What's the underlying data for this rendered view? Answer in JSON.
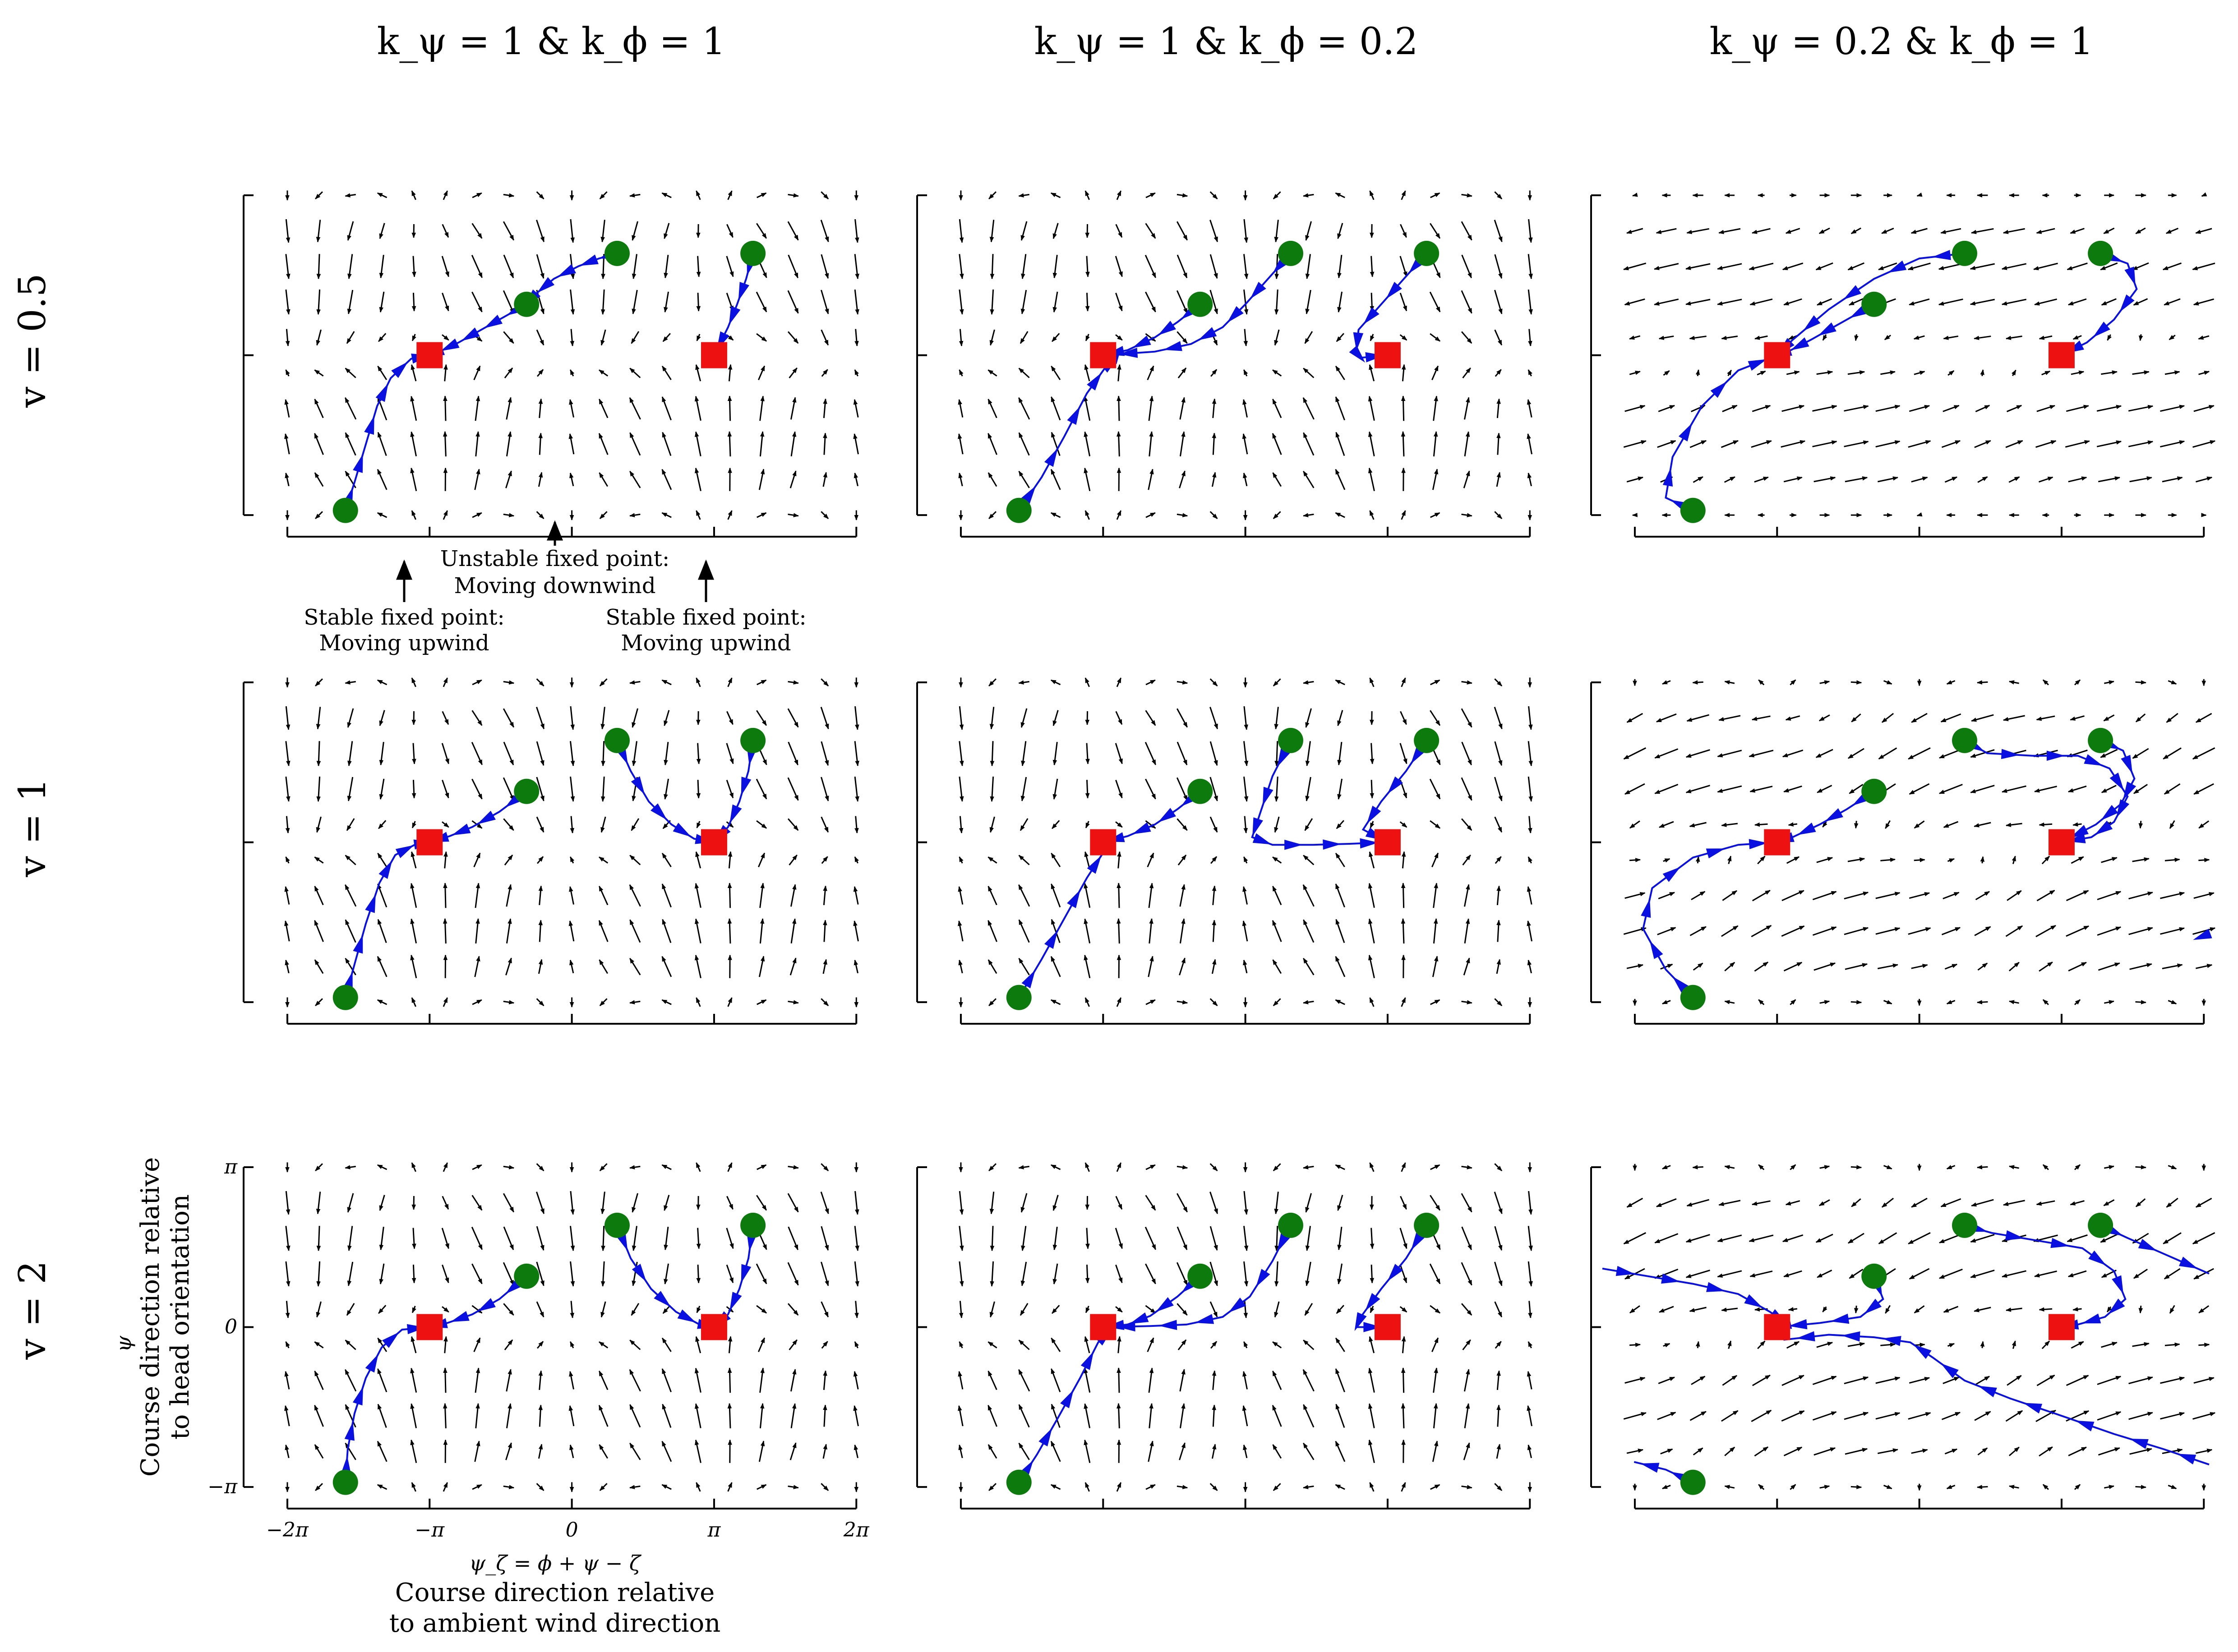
{
  "colors": {
    "trajectory": "#0a10e0",
    "start_marker": "#0c7a0c",
    "fixed_point_marker": "#ee1111",
    "quiver": "#000000"
  },
  "chart_data": {
    "type": "quiver-grid",
    "column_titles": [
      "k_ψ = 1   &   k_ϕ = 1",
      "k_ψ = 1   &   k_ϕ = 0.2",
      "k_ψ = 0.2   &   k_ϕ = 1"
    ],
    "row_titles": [
      "v = 0.5",
      "v = 1",
      "v = 2"
    ],
    "xlim": [
      -7.0,
      6.4
    ],
    "ylim": [
      -3.3,
      3.7
    ],
    "x_ticks": [
      -6.283,
      -3.1416,
      0,
      3.1416,
      6.283
    ],
    "x_tick_labels": [
      "−2π",
      "−π",
      "0",
      "π",
      "2π"
    ],
    "y_ticks": [
      -3.1416,
      0,
      3.1416
    ],
    "y_tick_labels": [
      "−π",
      "0",
      "π"
    ],
    "x_axis_label": {
      "symbol": "ψ_ζ = ϕ + ψ − ζ",
      "line1": "Course direction relative",
      "line2": "to ambient wind direction"
    },
    "y_axis_label": {
      "symbol": "ψ",
      "line1": "Course direction relative",
      "line2": "to head orientation"
    },
    "annotations": [
      {
        "text_lines": [
          "Unstable fixed point:",
          "Moving downwind"
        ],
        "x": 0.0
      },
      {
        "text_lines": [
          "Stable fixed point:",
          "Moving upwind"
        ],
        "x": -3.1416
      },
      {
        "text_lines": [
          "Stable fixed point:",
          "Moving upwind"
        ],
        "x": 3.1416
      }
    ],
    "fixed_points": [
      [
        -3.1416,
        0
      ],
      [
        3.1416,
        0
      ]
    ],
    "start_points": [
      [
        -5.0,
        -3.05
      ],
      [
        -1.0,
        1.0
      ],
      [
        1.0,
        2.0
      ],
      [
        4.0,
        2.0
      ]
    ],
    "panels": [
      {
        "row": 0,
        "col": 0,
        "field": "A",
        "trajectories": [
          [
            [
              -5.0,
              -3.05
            ],
            [
              -4.8,
              -2.5
            ],
            [
              -4.55,
              -1.75
            ],
            [
              -4.3,
              -1.0
            ],
            [
              -4.0,
              -0.45
            ],
            [
              -3.55,
              -0.07
            ],
            [
              -3.1416,
              0
            ]
          ],
          [
            [
              -1.0,
              1.0
            ],
            [
              -1.5,
              0.75
            ],
            [
              -2.0,
              0.5
            ],
            [
              -2.5,
              0.25
            ],
            [
              -2.9,
              0.08
            ],
            [
              -3.1416,
              0
            ]
          ],
          [
            [
              1.0,
              2.0
            ],
            [
              0.6,
              1.9
            ],
            [
              0.15,
              1.75
            ],
            [
              -0.4,
              1.5
            ],
            [
              -0.8,
              1.2
            ],
            [
              -1.0,
              1.0
            ]
          ],
          [
            [
              4.0,
              2.0
            ],
            [
              3.85,
              1.5
            ],
            [
              3.65,
              1.0
            ],
            [
              3.45,
              0.55
            ],
            [
              3.1416,
              0
            ]
          ]
        ]
      },
      {
        "row": 0,
        "col": 1,
        "field": "A",
        "trajectories": [
          [
            [
              -5.0,
              -3.05
            ],
            [
              -4.5,
              -2.4
            ],
            [
              -4.0,
              -1.6
            ],
            [
              -3.5,
              -0.75
            ],
            [
              -3.1,
              -0.25
            ],
            [
              -2.85,
              -0.07
            ],
            [
              -3.1416,
              0
            ]
          ],
          [
            [
              -1.0,
              1.0
            ],
            [
              -1.5,
              0.65
            ],
            [
              -2.0,
              0.35
            ],
            [
              -2.6,
              0.1
            ],
            [
              -3.1416,
              0
            ]
          ],
          [
            [
              1.0,
              2.0
            ],
            [
              0.5,
              1.5
            ],
            [
              0.0,
              1.0
            ],
            [
              -0.5,
              0.55
            ],
            [
              -1.2,
              0.22
            ],
            [
              -2.0,
              0.07
            ],
            [
              -3.1416,
              0
            ]
          ],
          [
            [
              4.0,
              2.0
            ],
            [
              3.5,
              1.5
            ],
            [
              3.0,
              1.0
            ],
            [
              2.5,
              0.5
            ],
            [
              2.45,
              0.05
            ],
            [
              2.55,
              -0.05
            ],
            [
              3.1416,
              0
            ]
          ]
        ]
      },
      {
        "row": 0,
        "col": 2,
        "field": "B",
        "trajectories": [
          [
            [
              -5.0,
              -3.05
            ],
            [
              -5.6,
              -2.8
            ],
            [
              -5.45,
              -2.0
            ],
            [
              -4.8,
              -1.0
            ],
            [
              -4.0,
              -0.3
            ],
            [
              -3.1416,
              0
            ]
          ],
          [
            [
              -1.0,
              1.0
            ],
            [
              -1.7,
              0.65
            ],
            [
              -2.4,
              0.3
            ],
            [
              -2.9,
              0.07
            ],
            [
              -3.1416,
              0
            ]
          ],
          [
            [
              1.0,
              2.0
            ],
            [
              0.0,
              1.9
            ],
            [
              -1.0,
              1.5
            ],
            [
              -2.0,
              0.9
            ],
            [
              -2.8,
              0.3
            ],
            [
              -3.1416,
              0
            ]
          ],
          [
            [
              4.0,
              2.0
            ],
            [
              4.6,
              1.8
            ],
            [
              4.8,
              1.3
            ],
            [
              4.3,
              0.7
            ],
            [
              3.7,
              0.25
            ],
            [
              3.1416,
              0
            ]
          ]
        ]
      },
      {
        "row": 1,
        "col": 0,
        "field": "A",
        "trajectories": [
          [
            [
              -5.0,
              -3.05
            ],
            [
              -4.8,
              -2.4
            ],
            [
              -4.55,
              -1.6
            ],
            [
              -4.25,
              -0.8
            ],
            [
              -3.9,
              -0.25
            ],
            [
              -3.45,
              -0.04
            ],
            [
              -3.1416,
              0
            ]
          ],
          [
            [
              -1.0,
              1.0
            ],
            [
              -1.6,
              0.6
            ],
            [
              -2.2,
              0.3
            ],
            [
              -2.7,
              0.12
            ],
            [
              -3.1416,
              0
            ]
          ],
          [
            [
              1.0,
              2.0
            ],
            [
              1.3,
              1.4
            ],
            [
              1.7,
              0.8
            ],
            [
              2.2,
              0.35
            ],
            [
              2.7,
              0.07
            ],
            [
              3.1416,
              0
            ]
          ],
          [
            [
              4.0,
              2.0
            ],
            [
              3.9,
              1.4
            ],
            [
              3.7,
              0.8
            ],
            [
              3.45,
              0.3
            ],
            [
              3.1416,
              0
            ]
          ]
        ]
      },
      {
        "row": 1,
        "col": 1,
        "field": "A",
        "trajectories": [
          [
            [
              -5.0,
              -3.05
            ],
            [
              -4.5,
              -2.3
            ],
            [
              -4.0,
              -1.5
            ],
            [
              -3.5,
              -0.7
            ],
            [
              -3.1,
              -0.15
            ],
            [
              -3.1416,
              0
            ]
          ],
          [
            [
              -1.0,
              1.0
            ],
            [
              -1.5,
              0.65
            ],
            [
              -2.0,
              0.35
            ],
            [
              -2.6,
              0.12
            ],
            [
              -3.1416,
              0
            ]
          ],
          [
            [
              1.0,
              2.0
            ],
            [
              0.6,
              1.3
            ],
            [
              0.3,
              0.5
            ],
            [
              0.15,
              0.1
            ],
            [
              0.6,
              -0.05
            ],
            [
              1.5,
              -0.05
            ],
            [
              2.3,
              -0.03
            ],
            [
              3.1416,
              0
            ]
          ],
          [
            [
              4.0,
              2.0
            ],
            [
              3.55,
              1.4
            ],
            [
              3.0,
              0.8
            ],
            [
              2.6,
              0.25
            ],
            [
              3.1416,
              0
            ]
          ]
        ]
      },
      {
        "row": 1,
        "col": 2,
        "field": "C",
        "trajectories": [
          [
            [
              -5.0,
              -3.05
            ],
            [
              -5.6,
              -2.5
            ],
            [
              -6.1,
              -1.7
            ],
            [
              -5.9,
              -0.9
            ],
            [
              -5.0,
              -0.3
            ],
            [
              -4.0,
              -0.05
            ],
            [
              -3.1416,
              0
            ]
          ],
          [
            [
              -1.0,
              1.0
            ],
            [
              -1.6,
              0.65
            ],
            [
              -2.2,
              0.35
            ],
            [
              -2.8,
              0.1
            ],
            [
              -3.1416,
              0
            ]
          ],
          [
            [
              1.0,
              2.0
            ],
            [
              1.5,
              1.75
            ],
            [
              2.5,
              1.7
            ],
            [
              3.5,
              1.7
            ],
            [
              4.2,
              1.45
            ],
            [
              4.6,
              0.9
            ],
            [
              4.3,
              0.4
            ],
            [
              3.8,
              0.1
            ],
            [
              3.1416,
              0
            ]
          ],
          [
            [
              4.0,
              2.0
            ],
            [
              4.5,
              1.8
            ],
            [
              4.75,
              1.25
            ],
            [
              4.45,
              0.75
            ],
            [
              3.9,
              0.35
            ],
            [
              3.1416,
              0
            ]
          ],
          [
            [
              6.4,
              -1.8
            ],
            [
              6.1,
              -1.9
            ]
          ]
        ]
      },
      {
        "row": 2,
        "col": 0,
        "field": "A",
        "trajectories": [
          [
            [
              -5.0,
              -3.05
            ],
            [
              -4.95,
              -2.4
            ],
            [
              -4.8,
              -1.7
            ],
            [
              -4.55,
              -1.0
            ],
            [
              -4.2,
              -0.4
            ],
            [
              -3.75,
              -0.05
            ],
            [
              -3.1416,
              0
            ]
          ],
          [
            [
              -1.0,
              1.0
            ],
            [
              -1.6,
              0.55
            ],
            [
              -2.2,
              0.25
            ],
            [
              -2.75,
              0.08
            ],
            [
              -3.1416,
              0
            ]
          ],
          [
            [
              1.0,
              2.0
            ],
            [
              1.3,
              1.35
            ],
            [
              1.75,
              0.75
            ],
            [
              2.3,
              0.3
            ],
            [
              2.8,
              0.06
            ],
            [
              3.1416,
              0
            ]
          ],
          [
            [
              4.0,
              2.0
            ],
            [
              3.9,
              1.35
            ],
            [
              3.7,
              0.75
            ],
            [
              3.45,
              0.25
            ],
            [
              3.1416,
              0
            ]
          ]
        ]
      },
      {
        "row": 2,
        "col": 1,
        "field": "A",
        "trajectories": [
          [
            [
              -5.0,
              -3.05
            ],
            [
              -4.6,
              -2.5
            ],
            [
              -4.15,
              -1.8
            ],
            [
              -3.65,
              -1.0
            ],
            [
              -3.25,
              -0.3
            ],
            [
              -2.95,
              -0.05
            ],
            [
              -3.1416,
              0
            ]
          ],
          [
            [
              -1.0,
              1.0
            ],
            [
              -1.5,
              0.6
            ],
            [
              -2.1,
              0.22
            ],
            [
              -2.6,
              0.05
            ],
            [
              -3.1416,
              0
            ]
          ],
          [
            [
              1.0,
              2.0
            ],
            [
              0.6,
              1.3
            ],
            [
              0.1,
              0.6
            ],
            [
              -0.5,
              0.2
            ],
            [
              -1.3,
              0.05
            ],
            [
              -2.1,
              0.02
            ],
            [
              -3.1416,
              0
            ]
          ],
          [
            [
              4.0,
              2.0
            ],
            [
              3.55,
              1.35
            ],
            [
              3.0,
              0.75
            ],
            [
              2.55,
              0.2
            ],
            [
              2.45,
              0.0
            ],
            [
              3.1416,
              0
            ]
          ]
        ]
      },
      {
        "row": 2,
        "col": 2,
        "field": "C",
        "trajectories": [
          [
            [
              -1.0,
              1.0
            ],
            [
              -0.8,
              0.55
            ],
            [
              -1.3,
              0.2
            ],
            [
              -2.2,
              0.08
            ],
            [
              -3.1416,
              0
            ]
          ],
          [
            [
              -7.0,
              1.15
            ],
            [
              -6.0,
              1.0
            ],
            [
              -5.0,
              0.85
            ],
            [
              -4.0,
              0.65
            ],
            [
              -3.3,
              0.3
            ],
            [
              -2.9,
              0.05
            ],
            [
              -3.1416,
              0
            ]
          ],
          [
            [
              1.0,
              2.0
            ],
            [
              1.6,
              1.85
            ],
            [
              2.6,
              1.7
            ],
            [
              3.6,
              1.55
            ],
            [
              4.3,
              1.1
            ],
            [
              4.55,
              0.55
            ],
            [
              4.1,
              0.2
            ],
            [
              3.5,
              0.05
            ],
            [
              3.1416,
              0
            ]
          ],
          [
            [
              4.0,
              2.0
            ],
            [
              4.6,
              1.75
            ],
            [
              5.5,
              1.4
            ],
            [
              6.4,
              1.05
            ]
          ],
          [
            [
              6.4,
              -2.7
            ],
            [
              5.4,
              -2.4
            ],
            [
              4.3,
              -2.1
            ],
            [
              3.0,
              -1.7
            ],
            [
              2.0,
              -1.4
            ],
            [
              1.0,
              -1.05
            ],
            [
              0.3,
              -0.6
            ],
            [
              -0.2,
              -0.3
            ],
            [
              -1.0,
              -0.2
            ],
            [
              -2.0,
              -0.15
            ],
            [
              -3.0,
              -0.25
            ]
          ],
          [
            [
              -5.0,
              -3.05
            ],
            [
              -5.6,
              -2.8
            ],
            [
              -6.3,
              -2.65
            ]
          ]
        ]
      }
    ]
  }
}
